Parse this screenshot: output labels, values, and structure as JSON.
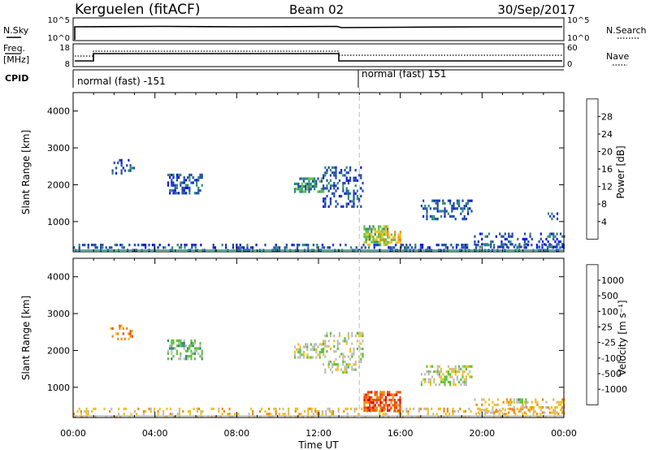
{
  "header": {
    "station": "Kerguelen (fitACF)",
    "beam": "Beam 02",
    "date": "30/Sep/2017"
  },
  "top_panels": {
    "nsky_label": "N.Sky",
    "nsky_ticks": [
      "10^5",
      "10^0"
    ],
    "nsearch_label": "N.Search",
    "nsearch_ticks": [
      "10^5",
      "10^0"
    ],
    "freq_label_1": "Freq.",
    "freq_label_2": "[MHz]",
    "freq_ticks": [
      "18",
      "8"
    ],
    "nave_label": "Nave",
    "nave_ticks": [
      "60",
      "0"
    ],
    "cpid_label": "CPID",
    "cpid_modes": [
      "normal (fast) -151",
      "normal (fast) 151"
    ]
  },
  "chart_data": [
    {
      "type": "heatmap",
      "title": "",
      "parameter": "Power",
      "xlabel": "",
      "ylabel": "Slant Range [km]",
      "ylim": [
        180,
        4500
      ],
      "xlim_hours": [
        0,
        24
      ],
      "y_ticks": [
        "1000",
        "2000",
        "3000",
        "4000"
      ],
      "colorbar_label": "Power [dB]",
      "colorbar_ticks": [
        "4",
        "8",
        "12",
        "16",
        "20",
        "24",
        "28"
      ],
      "colorbar_colors": [
        "#0a14e8",
        "#1e4ba8",
        "#2f8a78",
        "#5fc23a",
        "#f0c020",
        "#f08a10",
        "#f04a0a",
        "#e00000"
      ],
      "echo_regions": [
        {
          "t": [
            0,
            24
          ],
          "r": [
            200,
            400
          ],
          "level": 1,
          "sparse": 0.35
        },
        {
          "t": [
            1.8,
            3.0
          ],
          "r": [
            2300,
            2700
          ],
          "level": 1,
          "sparse": 0.25
        },
        {
          "t": [
            4.6,
            6.3
          ],
          "r": [
            1800,
            2300
          ],
          "level": 1,
          "sparse": 0.5
        },
        {
          "t": [
            10.8,
            12.2
          ],
          "r": [
            1800,
            2200
          ],
          "level": 2,
          "sparse": 0.55
        },
        {
          "t": [
            12.2,
            14.2
          ],
          "r": [
            1400,
            2500
          ],
          "level": 1,
          "sparse": 0.35
        },
        {
          "t": [
            14.2,
            15.4
          ],
          "r": [
            400,
            900
          ],
          "level": 3,
          "sparse": 0.7
        },
        {
          "t": [
            15.0,
            16.0
          ],
          "r": [
            450,
            750
          ],
          "level": 4,
          "sparse": 0.7
        },
        {
          "t": [
            17.0,
            19.5
          ],
          "r": [
            1100,
            1600
          ],
          "level": 1,
          "sparse": 0.4
        },
        {
          "t": [
            19.6,
            24.0
          ],
          "r": [
            300,
            700
          ],
          "level": 1,
          "sparse": 0.3
        },
        {
          "t": [
            23.2,
            23.7
          ],
          "r": [
            1050,
            1250
          ],
          "level": 1,
          "sparse": 0.4
        }
      ]
    },
    {
      "type": "heatmap",
      "title": "",
      "parameter": "Velocity",
      "xlabel": "Time UT",
      "ylabel": "Slant Range [km]",
      "ylim": [
        180,
        4500
      ],
      "xlim_hours": [
        0,
        24
      ],
      "x_ticks": [
        "00:00",
        "04:00",
        "08:00",
        "12:00",
        "16:00",
        "20:00",
        "00:00"
      ],
      "y_ticks": [
        "1000",
        "2000",
        "3000",
        "4000"
      ],
      "colorbar_label": "Velocity [m s⁻¹]",
      "colorbar_ticks": [
        "1000",
        "500",
        "100",
        "25",
        "-25",
        "-100",
        "-500",
        "-1000"
      ],
      "colorbar_colors": [
        "#0a14e8",
        "#1e4ba8",
        "#2f8a78",
        "#5fc23a",
        "#bdbdbd",
        "#f0c020",
        "#f08a10",
        "#f04a0a",
        "#e00000"
      ],
      "echo_regions": [
        {
          "t": [
            0,
            24
          ],
          "r": [
            200,
            450
          ],
          "level": 5,
          "sparse": 0.25
        },
        {
          "t": [
            1.8,
            3.0
          ],
          "r": [
            2300,
            2700
          ],
          "level": 6,
          "sparse": 0.25
        },
        {
          "t": [
            4.6,
            6.3
          ],
          "r": [
            1800,
            2300
          ],
          "level": 3,
          "sparse": 0.5
        },
        {
          "t": [
            10.8,
            12.2
          ],
          "r": [
            1800,
            2200
          ],
          "level": 4,
          "sparse": 0.55
        },
        {
          "t": [
            12.2,
            14.2
          ],
          "r": [
            1400,
            2500
          ],
          "level": 4,
          "sparse": 0.3
        },
        {
          "t": [
            14.2,
            16.0
          ],
          "r": [
            400,
            900
          ],
          "level": 7,
          "sparse": 0.75
        },
        {
          "t": [
            17.0,
            19.5
          ],
          "r": [
            1100,
            1600
          ],
          "level": 4,
          "sparse": 0.4
        },
        {
          "t": [
            21.4,
            22.2
          ],
          "r": [
            550,
            700
          ],
          "level": 3,
          "sparse": 0.6
        },
        {
          "t": [
            19.6,
            24.0
          ],
          "r": [
            300,
            700
          ],
          "level": 5,
          "sparse": 0.3
        }
      ]
    }
  ],
  "mode_change_hours": 14.0
}
